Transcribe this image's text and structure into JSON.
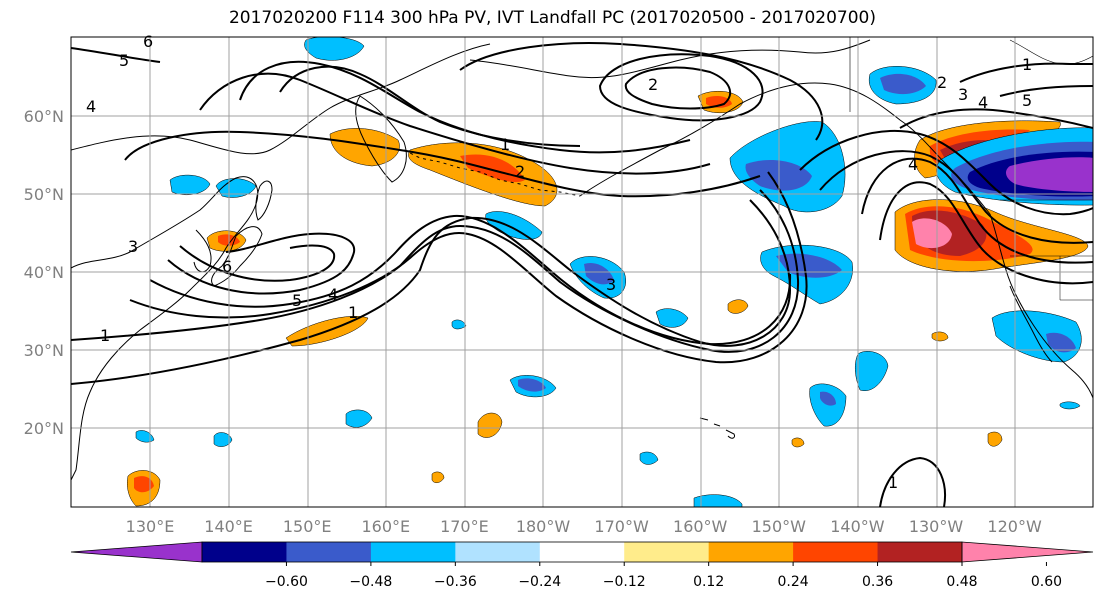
{
  "title": "2017020200 F114 300 hPa PV, IVT Landfall PC (2017020500 - 2017020700)",
  "map": {
    "lat_labels": [
      {
        "text": "60°N",
        "lat": 60
      },
      {
        "text": "50°N",
        "lat": 50
      },
      {
        "text": "40°N",
        "lat": 40
      },
      {
        "text": "30°N",
        "lat": 30
      },
      {
        "text": "20°N",
        "lat": 20
      }
    ],
    "lon_labels": [
      {
        "text": "130°E",
        "lon": 130
      },
      {
        "text": "140°E",
        "lon": 140
      },
      {
        "text": "150°E",
        "lon": 150
      },
      {
        "text": "160°E",
        "lon": 160
      },
      {
        "text": "170°E",
        "lon": 170
      },
      {
        "text": "180°W",
        "lon": 180
      },
      {
        "text": "170°W",
        "lon": 190
      },
      {
        "text": "160°W",
        "lon": 200
      },
      {
        "text": "150°W",
        "lon": 210
      },
      {
        "text": "140°W",
        "lon": 220
      },
      {
        "text": "130°W",
        "lon": 230
      },
      {
        "text": "120°W",
        "lon": 240
      }
    ],
    "contour_labels": [
      "6",
      "5",
      "4",
      "1",
      "2",
      "1",
      "2",
      "3",
      "4",
      "5",
      "1",
      "2",
      "3",
      "4",
      "5",
      "6",
      "4",
      "1",
      "3",
      "1"
    ],
    "colorbar": {
      "colors": [
        "#9932CC",
        "#00008B",
        "#3A5BCB",
        "#00BFFF",
        "#B0E2FF",
        "#FFFFFF",
        "#FFEC8B",
        "#FFA500",
        "#FF4500",
        "#B22222",
        "#FF82AB"
      ],
      "tick_labels": [
        "−0.60",
        "−0.48",
        "−0.36",
        "−0.24",
        "−0.12",
        "0.12",
        "0.24",
        "0.36",
        "0.48",
        "0.60"
      ]
    }
  }
}
